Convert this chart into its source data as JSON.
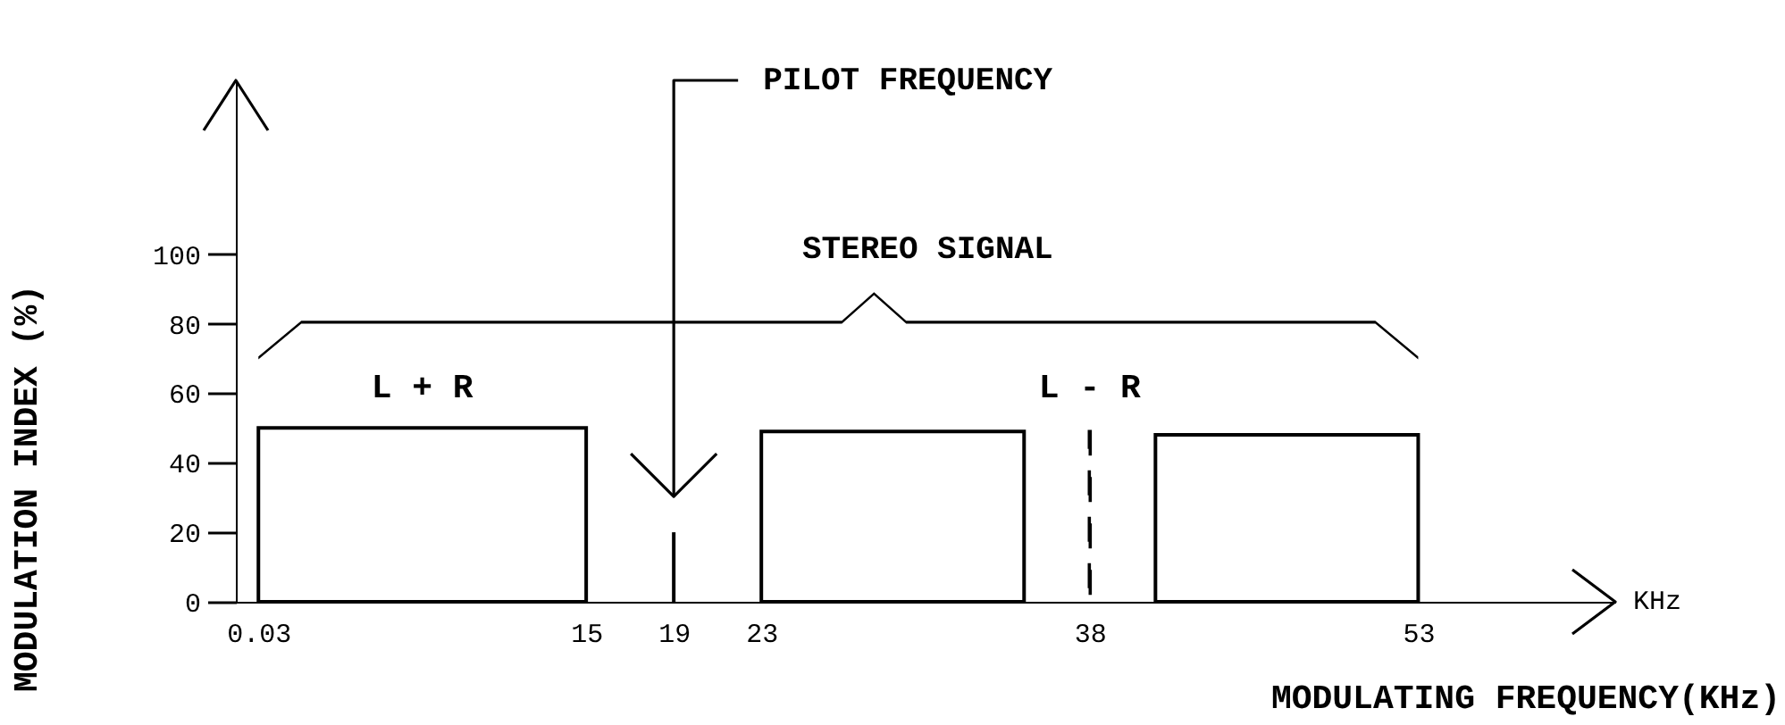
{
  "chart_data": {
    "type": "histogram",
    "xlabel": "MODULATING FREQUENCY(KHz)",
    "ylabel": "MODULATION INDEX (%)",
    "xlim": [
      -1,
      62
    ],
    "xticks": [
      0.03,
      15,
      19,
      23,
      38,
      53
    ],
    "ylim": [
      0,
      150
    ],
    "yticks": [
      0,
      20,
      40,
      60,
      80,
      100
    ],
    "grid": false,
    "series": [
      {
        "color": "#000000",
        "bins": [
          0.03,
          15,
          23,
          35,
          41,
          53
        ],
        "values": [
          50,
          null,
          49,
          null,
          48
        ]
      },
      {
        "type": "bar",
        "color": "#000000",
        "x": [
          19
        ],
        "values": [
          20
        ]
      },
      {
        "type": "bar",
        "color": "#000000",
        "x": [
          38
        ],
        "values": [
          49
        ],
        "line_style": "dashed"
      }
    ],
    "annotations": [
      "L + R",
      "L - R",
      "STEREO SIGNAL",
      "PILOT FREQUENCY",
      "KHz"
    ]
  }
}
